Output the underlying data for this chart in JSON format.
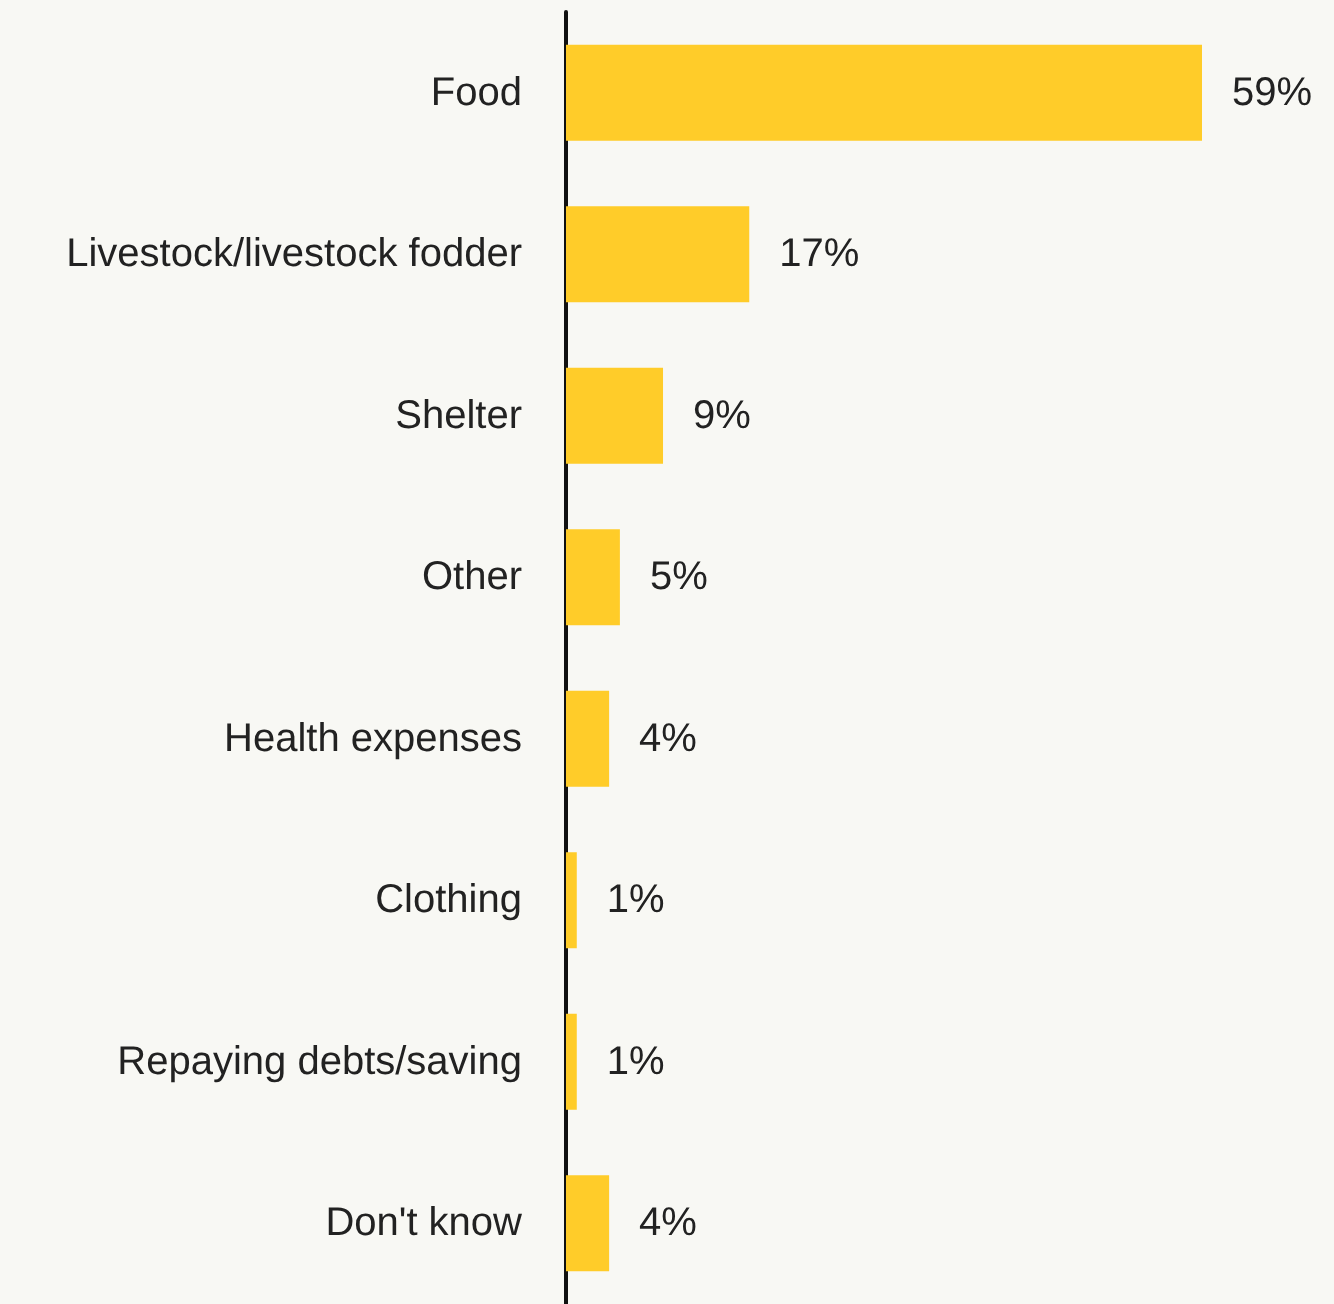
{
  "chart_data": {
    "type": "bar",
    "orientation": "horizontal",
    "categories": [
      "Food",
      "Livestock/livestock fodder",
      "Shelter",
      "Other",
      "Health expenses",
      "Clothing",
      "Repaying debts/saving",
      "Don't know"
    ],
    "values": [
      59,
      17,
      9,
      5,
      4,
      1,
      1,
      4
    ],
    "value_labels": [
      "59%",
      "17%",
      "9%",
      "5%",
      "4%",
      "1%",
      "1%",
      "4%"
    ],
    "color": "#ffcc29"
  }
}
